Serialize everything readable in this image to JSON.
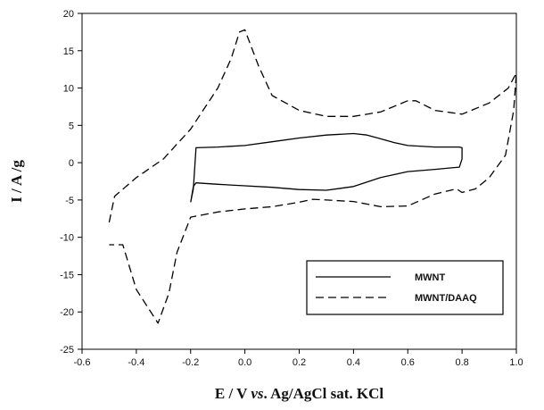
{
  "chart_data": {
    "type": "line",
    "title": "",
    "xlabel_parts": [
      "E / V ",
      "vs",
      ". Ag/AgCl sat. KCl"
    ],
    "ylabel": "I / A /g",
    "xlim": [
      -0.6,
      1.0
    ],
    "ylim": [
      -25,
      20
    ],
    "xticks": [
      -0.6,
      -0.4,
      -0.2,
      0.0,
      0.2,
      0.4,
      0.6,
      0.8,
      1.0
    ],
    "xtick_labels": [
      "-0.6",
      "-0.4",
      "-0.2",
      "0.0",
      "0.2",
      "0.4",
      "0.6",
      "0.8",
      "1.0"
    ],
    "yticks": [
      -25,
      -20,
      -15,
      -10,
      -5,
      0,
      5,
      10,
      15,
      20
    ],
    "ytick_labels": [
      "-25",
      "-20",
      "-15",
      "-10",
      "-5",
      "0",
      "5",
      "10",
      "15",
      "20"
    ],
    "grid": false,
    "legend_position": "bottom-right",
    "series": [
      {
        "name": "MWNT",
        "style": "solid",
        "color": "#000000",
        "x": [
          -0.2,
          -0.19,
          -0.18,
          -0.1,
          0.0,
          0.1,
          0.2,
          0.3,
          0.4,
          0.45,
          0.5,
          0.55,
          0.6,
          0.7,
          0.79,
          0.8,
          0.8,
          0.79,
          0.7,
          0.6,
          0.5,
          0.4,
          0.3,
          0.2,
          0.1,
          0.0,
          -0.1,
          -0.18,
          -0.19,
          -0.2
        ],
        "y": [
          -5.3,
          -3.5,
          2.0,
          2.1,
          2.3,
          2.8,
          3.3,
          3.7,
          3.9,
          3.7,
          3.2,
          2.7,
          2.3,
          2.1,
          2.1,
          2.0,
          0.5,
          -0.6,
          -0.9,
          -1.2,
          -2.0,
          -3.2,
          -3.7,
          -3.6,
          -3.3,
          -3.1,
          -2.9,
          -2.7,
          -3.2,
          -5.3
        ]
      },
      {
        "name": "MWNT/DAAQ",
        "style": "dashed",
        "color": "#000000",
        "x": [
          -0.5,
          -0.48,
          -0.4,
          -0.3,
          -0.2,
          -0.1,
          -0.05,
          -0.02,
          0.0,
          0.05,
          0.1,
          0.2,
          0.3,
          0.4,
          0.5,
          0.6,
          0.63,
          0.7,
          0.8,
          0.9,
          0.97,
          1.0,
          0.99,
          0.96,
          0.9,
          0.85,
          0.8,
          0.78,
          0.7,
          0.6,
          0.5,
          0.4,
          0.3,
          0.25,
          0.2,
          0.1,
          0.0,
          -0.1,
          -0.2,
          -0.25,
          -0.28,
          -0.32,
          -0.4,
          -0.45,
          -0.5
        ],
        "y": [
          -8.0,
          -4.5,
          -2.0,
          0.5,
          4.5,
          10.0,
          14.0,
          17.5,
          17.8,
          13.0,
          9.0,
          7.0,
          6.2,
          6.2,
          6.8,
          8.3,
          8.3,
          7.0,
          6.5,
          8.0,
          10.0,
          12.0,
          7.0,
          1.0,
          -2.0,
          -3.5,
          -4.0,
          -3.5,
          -4.2,
          -5.8,
          -5.9,
          -5.2,
          -5.0,
          -4.9,
          -5.3,
          -5.9,
          -6.2,
          -6.6,
          -7.3,
          -12.0,
          -17.5,
          -21.5,
          -17.0,
          -11.0,
          -11.0
        ]
      }
    ]
  }
}
